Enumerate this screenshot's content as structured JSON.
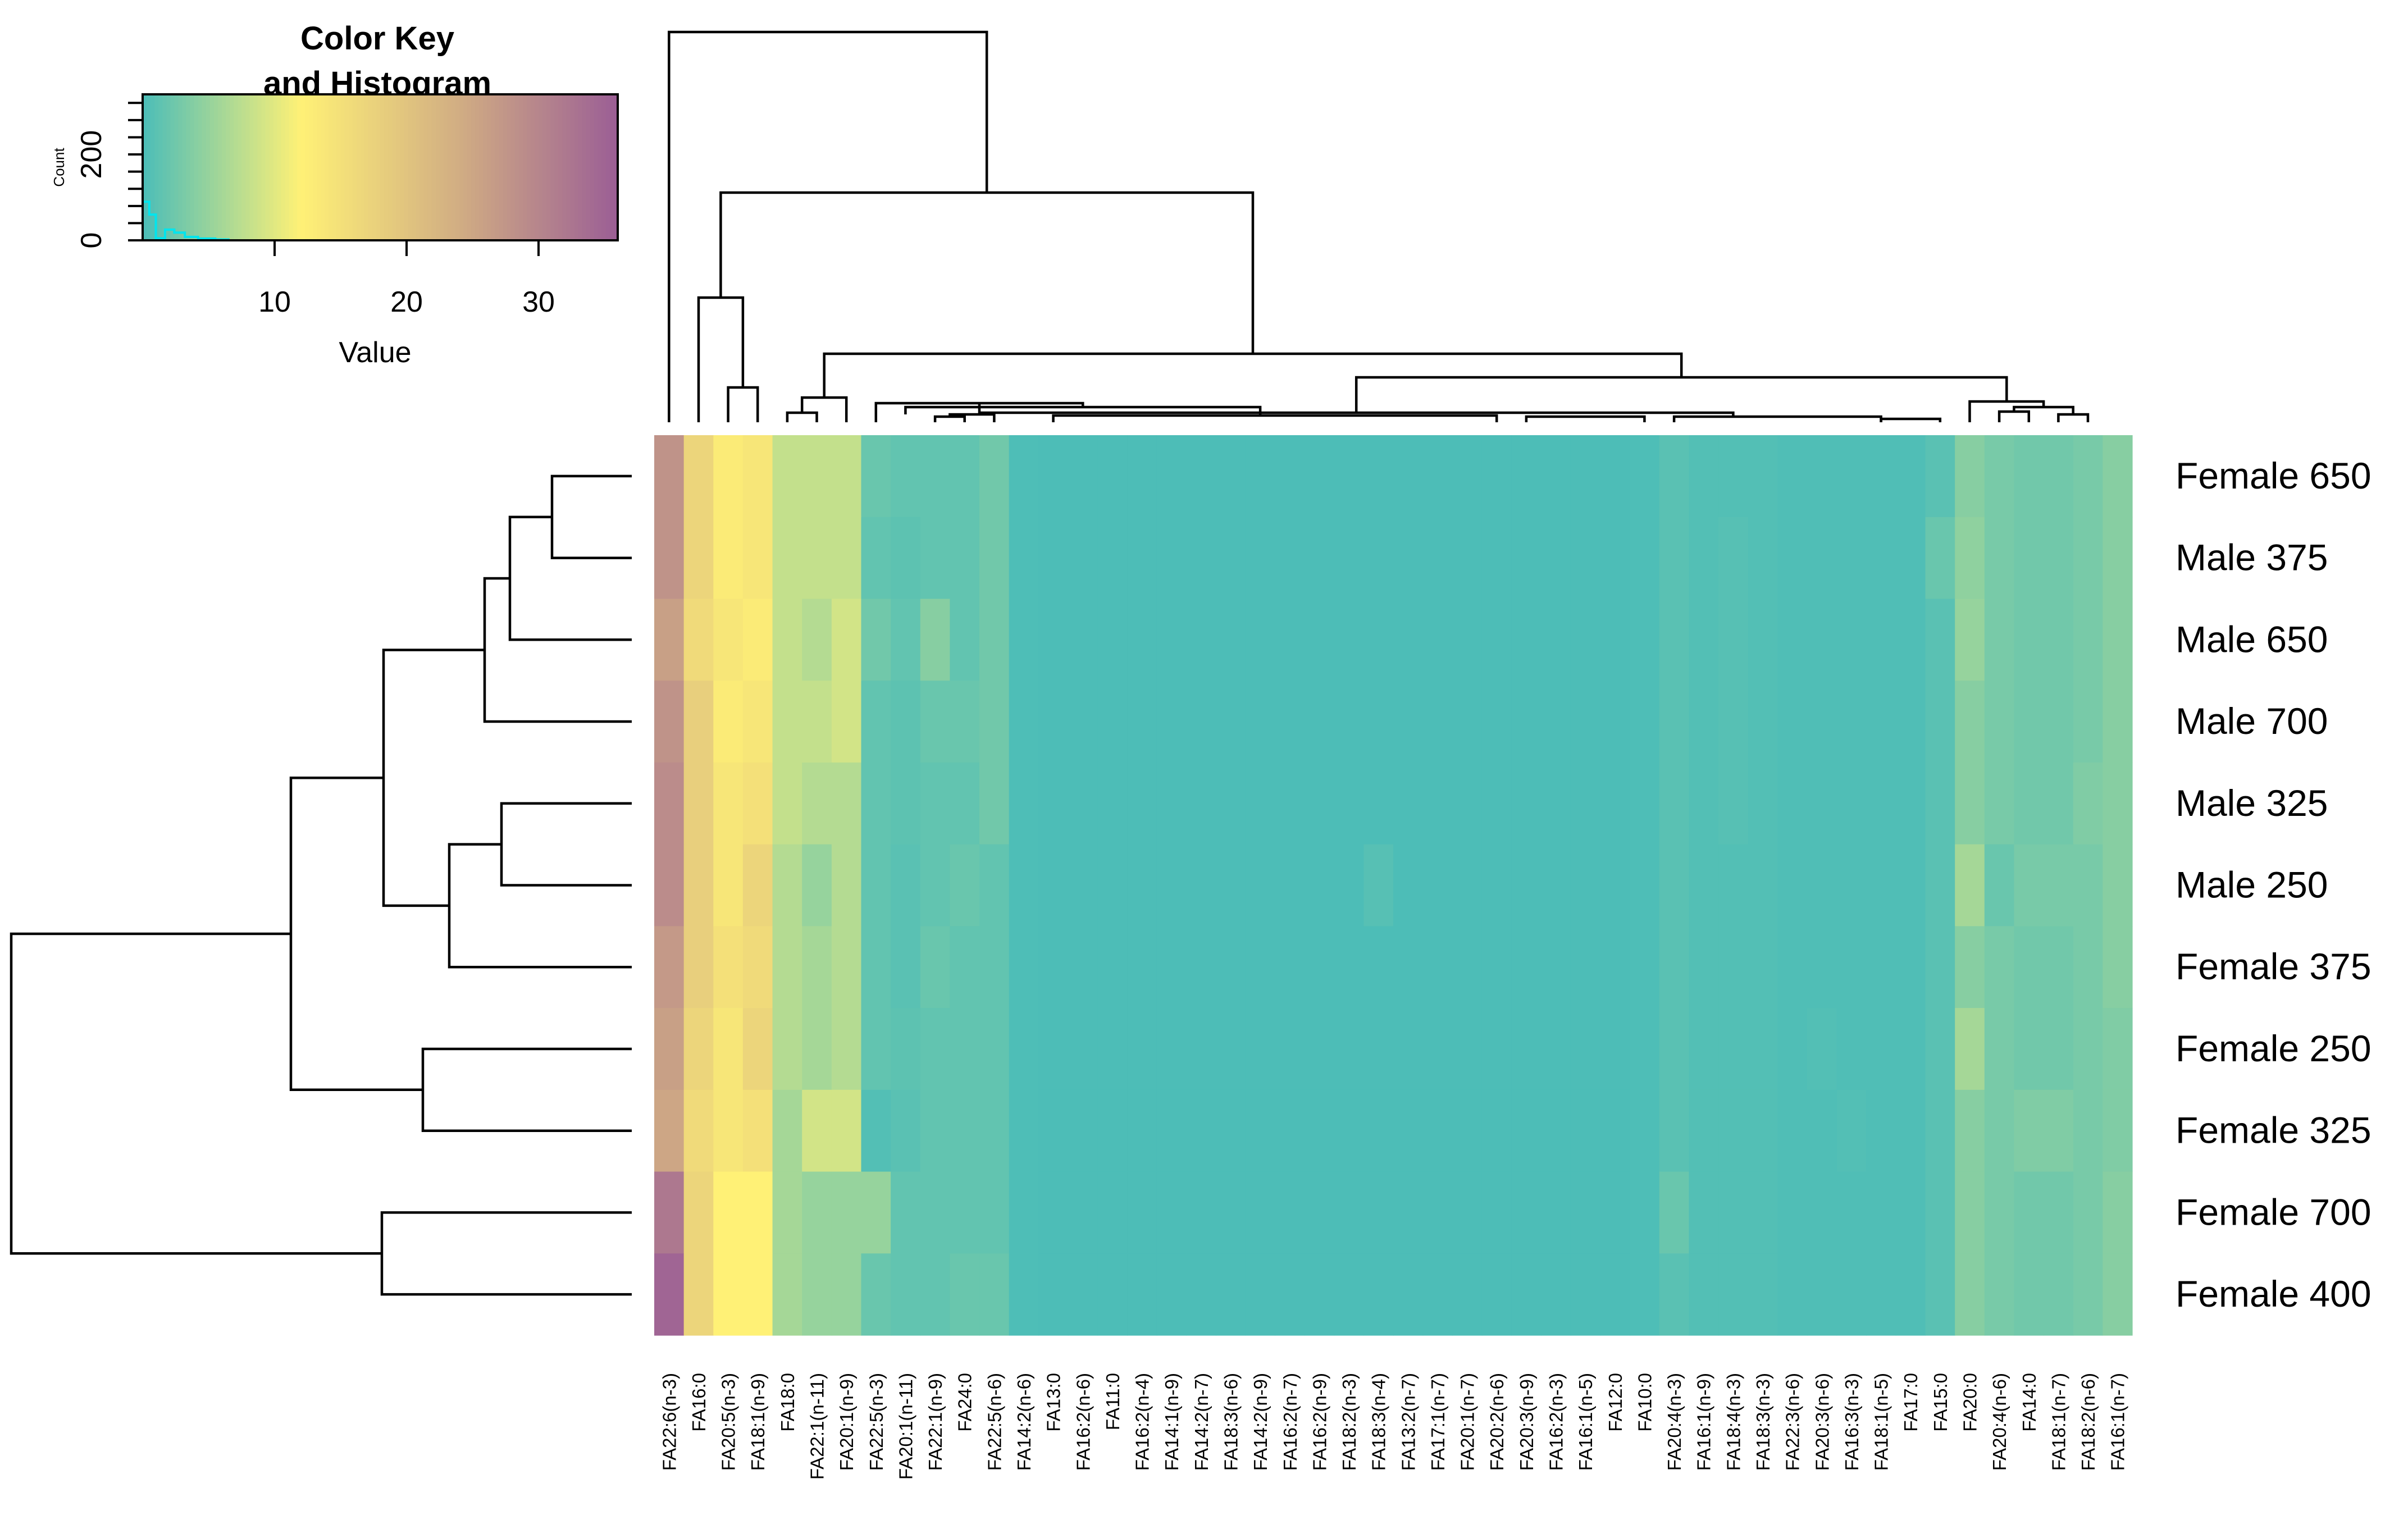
{
  "chart_data": {
    "type": "heatmap",
    "color_key": {
      "title_lines": [
        "Color Key",
        "and Histogram"
      ],
      "x_label": "Value",
      "x_ticks": [
        10,
        20,
        30
      ],
      "y_label": "Count",
      "y_ticks": [
        0,
        200
      ],
      "range": [
        0,
        36
      ],
      "y_range": [
        0,
        340
      ],
      "colors": [
        "#4bbdb8",
        "#fff176",
        "#d1ad83",
        "#9b5e95"
      ],
      "histogram_color": "#00e5ee",
      "histogram": [
        [
          0,
          90
        ],
        [
          0.5,
          60
        ],
        [
          1,
          5
        ],
        [
          1.7,
          25
        ],
        [
          2.4,
          18
        ],
        [
          3.2,
          8
        ],
        [
          4.2,
          4
        ],
        [
          5.5,
          2
        ]
      ]
    },
    "columns": [
      "FA22:6(n-3)",
      "FA16:0",
      "FA20:5(n-3)",
      "FA18:1(n-9)",
      "FA18:0",
      "FA22:1(n-11)",
      "FA20:1(n-9)",
      "FA22:5(n-3)",
      "FA20:1(n-11)",
      "FA22:1(n-9)",
      "FA24:0",
      "FA22:5(n-6)",
      "FA14:2(n-6)",
      "FA13:0",
      "FA16:2(n-6)",
      "FA11:0",
      "FA16:2(n-4)",
      "FA14:1(n-9)",
      "FA14:2(n-7)",
      "FA18:3(n-6)",
      "FA14:2(n-9)",
      "FA16:2(n-7)",
      "FA16:2(n-9)",
      "FA18:2(n-3)",
      "FA18:3(n-4)",
      "FA13:2(n-7)",
      "FA17:1(n-7)",
      "FA20:1(n-7)",
      "FA20:2(n-6)",
      "FA20:3(n-9)",
      "FA16:2(n-3)",
      "FA16:1(n-5)",
      "FA12:0",
      "FA10:0",
      "FA20:4(n-3)",
      "FA16:1(n-9)",
      "FA18:4(n-3)",
      "FA18:3(n-3)",
      "FA22:3(n-6)",
      "FA20:3(n-6)",
      "FA16:3(n-3)",
      "FA18:1(n-5)",
      "FA17:0",
      "FA15:0",
      "FA20:0",
      "FA20:4(n-6)",
      "FA14:0",
      "FA18:1(n-7)",
      "FA18:2(n-6)",
      "FA16:1(n-7)"
    ],
    "rows": [
      "Female 650",
      "Male 375",
      "Male 650",
      "Male 700",
      "Male 325",
      "Male 250",
      "Female 375",
      "Female 250",
      "Female 325",
      "Female 700",
      "Female 400"
    ],
    "values": [
      [
        28,
        17,
        13,
        14,
        8,
        8,
        8,
        2,
        1.5,
        1.5,
        1.5,
        2.5,
        0.2,
        0.1,
        0.1,
        0.1,
        0.1,
        0.1,
        0.1,
        0.1,
        0.1,
        0.1,
        0.1,
        0.1,
        0.1,
        0.1,
        0.1,
        0.1,
        0.1,
        0.1,
        0.1,
        0.1,
        0.1,
        0.2,
        1,
        0.5,
        0.5,
        0.5,
        0.3,
        0.3,
        0.3,
        0.3,
        0.3,
        1,
        4,
        3,
        2.5,
        2.5,
        3,
        4
      ],
      [
        28,
        17,
        13,
        14,
        8,
        8,
        8,
        1.5,
        1.2,
        1.5,
        1.5,
        2.5,
        0.2,
        0.1,
        0.1,
        0.1,
        0.1,
        0.1,
        0.1,
        0.1,
        0.1,
        0.1,
        0.1,
        0.1,
        0.1,
        0.1,
        0.1,
        0.1,
        0.1,
        0.1,
        0.1,
        0.1,
        0.1,
        0.2,
        1,
        0.5,
        0.8,
        0.5,
        0.3,
        0.3,
        0.3,
        0.3,
        0.3,
        2,
        4.5,
        3,
        2.5,
        2.5,
        3,
        4
      ],
      [
        26,
        16,
        14,
        13,
        8,
        7,
        9,
        2.5,
        1.5,
        4,
        1.5,
        2.5,
        0.2,
        0.1,
        0.1,
        0.1,
        0.1,
        0.1,
        0.1,
        0.1,
        0.1,
        0.1,
        0.1,
        0.1,
        0.1,
        0.1,
        0.1,
        0.1,
        0.1,
        0.1,
        0.1,
        0.1,
        0.1,
        0.2,
        1,
        0.5,
        0.8,
        0.5,
        0.3,
        0.3,
        0.3,
        0.3,
        0.3,
        1,
        5,
        3,
        2.5,
        2.5,
        3,
        4
      ],
      [
        28,
        18,
        13,
        14,
        8,
        8,
        9,
        1.5,
        1.2,
        2,
        2,
        2.5,
        0.2,
        0.1,
        0.1,
        0.1,
        0.1,
        0.1,
        0.1,
        0.1,
        0.1,
        0.1,
        0.1,
        0.1,
        0.1,
        0.1,
        0.1,
        0.1,
        0.1,
        0.1,
        0.1,
        0.1,
        0.1,
        0.2,
        1,
        0.5,
        0.8,
        0.5,
        0.3,
        0.3,
        0.3,
        0.3,
        0.3,
        1,
        4,
        3,
        2.5,
        2.5,
        3,
        4
      ],
      [
        29,
        18,
        14,
        15,
        8,
        7,
        7,
        1.5,
        1.2,
        1.5,
        1.5,
        2.5,
        0.2,
        0.1,
        0.1,
        0.1,
        0.1,
        0.1,
        0.1,
        0.1,
        0.1,
        0.1,
        0.1,
        0.1,
        0.1,
        0.1,
        0.1,
        0.1,
        0.1,
        0.1,
        0.1,
        0.1,
        0.1,
        0.2,
        1,
        0.5,
        0.8,
        0.5,
        0.3,
        0.3,
        0.3,
        0.3,
        0.3,
        1,
        4,
        3,
        2.5,
        2.5,
        3.5,
        4
      ],
      [
        29,
        18,
        14,
        17,
        7,
        5,
        7,
        1.5,
        1,
        1.5,
        2,
        1.5,
        0.2,
        0.1,
        0.1,
        0.1,
        0.1,
        0.1,
        0.1,
        0.1,
        0.1,
        0.1,
        0.1,
        0.1,
        0.8,
        0.1,
        0.1,
        0.1,
        0.1,
        0.1,
        0.1,
        0.1,
        0.1,
        0.2,
        1,
        0.5,
        0.5,
        0.5,
        0.3,
        0.3,
        0.3,
        0.3,
        0.3,
        1,
        6,
        2,
        3,
        3,
        3,
        4
      ],
      [
        27,
        18,
        15,
        16,
        7,
        6,
        7,
        1.5,
        1,
        2,
        1.5,
        1.5,
        0.2,
        0.1,
        0.1,
        0.1,
        0.1,
        0.1,
        0.1,
        0.1,
        0.1,
        0.1,
        0.1,
        0.1,
        0.1,
        0.1,
        0.1,
        0.1,
        0.1,
        0.1,
        0.1,
        0.1,
        0.1,
        0.2,
        1,
        0.5,
        0.5,
        0.5,
        0.3,
        0.3,
        0.3,
        0.3,
        0.3,
        1,
        4,
        3,
        2.5,
        2.5,
        3,
        4
      ],
      [
        26,
        17,
        14,
        17,
        7,
        6,
        7,
        1.5,
        1.2,
        1.5,
        1.5,
        1.5,
        0.2,
        0.1,
        0.1,
        0.1,
        0.1,
        0.1,
        0.1,
        0.1,
        0.1,
        0.1,
        0.1,
        0.1,
        0.1,
        0.1,
        0.1,
        0.1,
        0.1,
        0.1,
        0.1,
        0.1,
        0.1,
        0.2,
        1,
        0.5,
        0.5,
        0.5,
        0.3,
        0.5,
        0.3,
        0.3,
        0.3,
        1,
        6,
        3,
        2.5,
        2.5,
        3,
        3.5
      ],
      [
        25,
        16,
        14,
        15,
        6,
        9,
        9,
        0.5,
        1,
        1.5,
        1.5,
        1.5,
        0.2,
        0.1,
        0.1,
        0.1,
        0.1,
        0.1,
        0.1,
        0.1,
        0.1,
        0.1,
        0.1,
        0.1,
        0.1,
        0.1,
        0.1,
        0.1,
        0.1,
        0.1,
        0.1,
        0.1,
        0.1,
        0.2,
        1,
        0.5,
        0.5,
        0.5,
        0.3,
        0.3,
        0.5,
        0.3,
        0.3,
        1,
        4,
        3,
        3.5,
        3.5,
        3,
        3.5
      ],
      [
        32,
        17,
        12,
        12,
        6,
        5,
        5,
        5,
        1.5,
        1.5,
        1.5,
        1.5,
        0.2,
        0.1,
        0.1,
        0.1,
        0.1,
        0.1,
        0.1,
        0.1,
        0.1,
        0.1,
        0.1,
        0.1,
        0.1,
        0.1,
        0.1,
        0.1,
        0.1,
        0.1,
        0.1,
        0.1,
        0.1,
        0.2,
        2,
        0.5,
        0.5,
        0.5,
        0.3,
        0.3,
        0.3,
        0.3,
        0.3,
        1,
        4,
        3,
        2.5,
        2.5,
        3,
        4
      ],
      [
        35,
        17,
        12,
        12,
        6,
        5,
        5,
        2,
        1.5,
        1.5,
        2,
        2,
        0.2,
        0.1,
        0.1,
        0.1,
        0.1,
        0.1,
        0.1,
        0.1,
        0.1,
        0.1,
        0.1,
        0.1,
        0.1,
        0.1,
        0.1,
        0.1,
        0.1,
        0.1,
        0.1,
        0.1,
        0.1,
        0.2,
        1,
        0.5,
        0.5,
        0.5,
        0.3,
        0.3,
        0.3,
        0.3,
        0.3,
        1,
        4,
        3,
        2.5,
        2.5,
        3,
        4
      ]
    ]
  }
}
